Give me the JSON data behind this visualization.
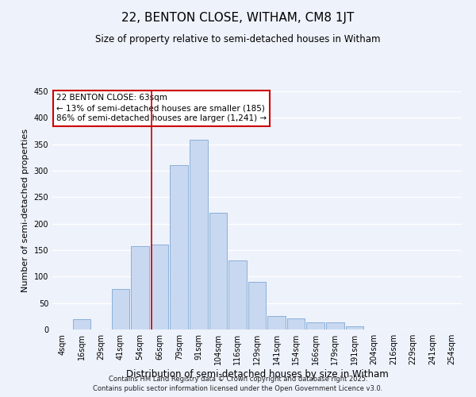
{
  "title": "22, BENTON CLOSE, WITHAM, CM8 1JT",
  "subtitle": "Size of property relative to semi-detached houses in Witham",
  "xlabel": "Distribution of semi-detached houses by size in Witham",
  "ylabel": "Number of semi-detached properties",
  "bin_labels": [
    "4sqm",
    "16sqm",
    "29sqm",
    "41sqm",
    "54sqm",
    "66sqm",
    "79sqm",
    "91sqm",
    "104sqm",
    "116sqm",
    "129sqm",
    "141sqm",
    "154sqm",
    "166sqm",
    "179sqm",
    "191sqm",
    "204sqm",
    "216sqm",
    "229sqm",
    "241sqm",
    "254sqm"
  ],
  "bin_values": [
    0,
    20,
    0,
    77,
    158,
    160,
    310,
    358,
    220,
    130,
    90,
    25,
    21,
    14,
    14,
    6,
    0,
    0,
    0,
    0,
    0
  ],
  "bar_color": "#c8d8f0",
  "bar_edge_color": "#8ab0d8",
  "annotation_title": "22 BENTON CLOSE: 63sqm",
  "annotation_line1": "← 13% of semi-detached houses are smaller (185)",
  "annotation_line2": "86% of semi-detached houses are larger (1,241) →",
  "vline_color": "#cc0000",
  "vline_x": 4.575,
  "ylim_max": 450,
  "yticks": [
    0,
    50,
    100,
    150,
    200,
    250,
    300,
    350,
    400,
    450
  ],
  "annotation_box_color": "#ffffff",
  "annotation_box_edge": "#cc0000",
  "footer1": "Contains HM Land Registry data © Crown copyright and database right 2025.",
  "footer2": "Contains public sector information licensed under the Open Government Licence v3.0.",
  "background_color": "#eef2fb",
  "grid_color": "#ffffff",
  "title_fontsize": 11,
  "subtitle_fontsize": 8.5,
  "xlabel_fontsize": 8.5,
  "ylabel_fontsize": 8,
  "tick_fontsize": 7,
  "annotation_fontsize": 7.5,
  "footer_fontsize": 6
}
